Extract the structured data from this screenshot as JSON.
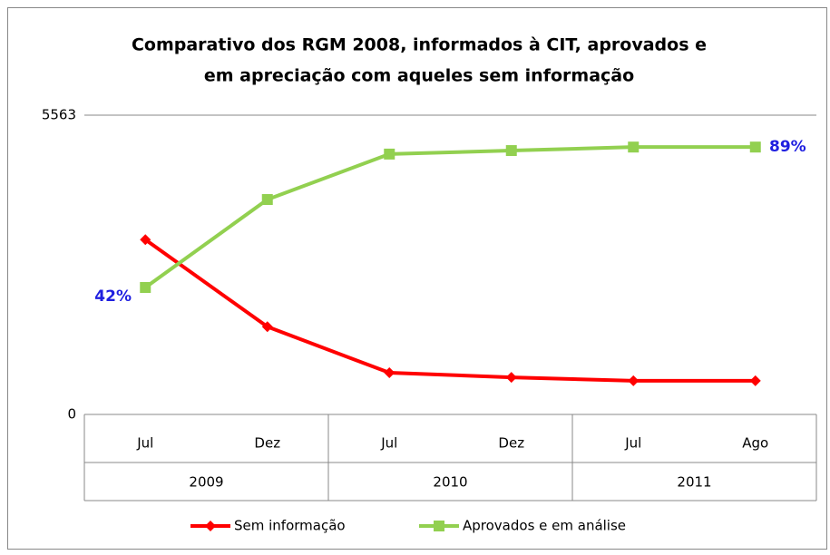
{
  "chart_data": {
    "type": "line",
    "title": [
      "Comparativo dos RGM 2008, informados à CIT, aprovados e",
      "em apreciação com aqueles sem informação"
    ],
    "categories": [
      "Jul",
      "Dez",
      "Jul",
      "Dez",
      "Jul",
      "Ago"
    ],
    "category_groups": [
      "2009",
      "2010",
      "2011"
    ],
    "series": [
      {
        "name": "Sem informação",
        "color": "#ff0000",
        "marker": "diamond",
        "values": [
          3250,
          1630,
          775,
          690,
          625,
          625
        ]
      },
      {
        "name": "Aprovados e em análise",
        "color": "#92d050",
        "marker": "square",
        "values": [
          2360,
          3995,
          4840,
          4905,
          4970,
          4970
        ]
      }
    ],
    "annotations": [
      "42%",
      "89%"
    ],
    "ylim": [
      0,
      5563
    ],
    "yticks": [
      0,
      5563
    ],
    "legend": "bottom"
  }
}
